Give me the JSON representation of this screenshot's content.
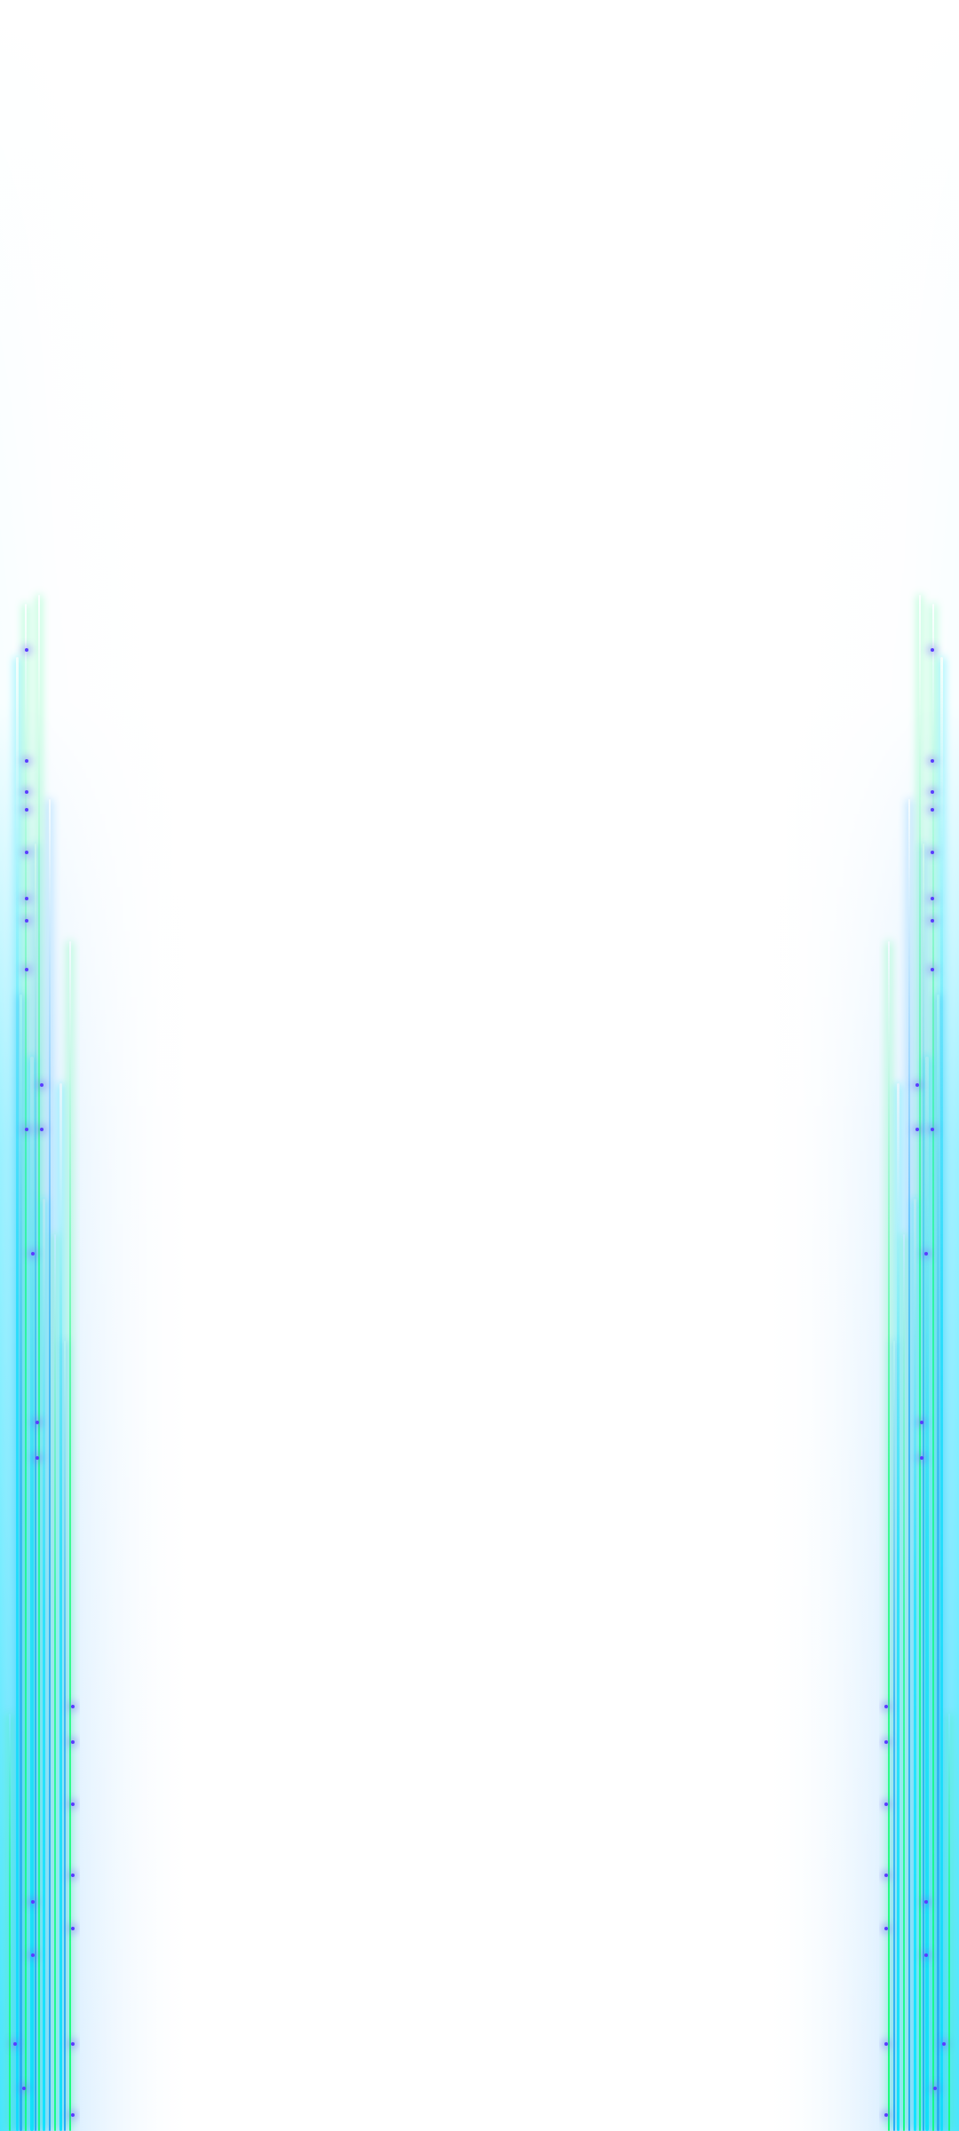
{
  "screen": {
    "background": "#ffffff",
    "visible_text": []
  },
  "effect": {
    "name": "edge-light-wallpaper",
    "colors": {
      "cyan": "#12e6ff",
      "azure": "#2aa7ff",
      "green": "#19ff7a",
      "glow": "#b9f0ff",
      "sparkle": "#5a3cff"
    }
  }
}
